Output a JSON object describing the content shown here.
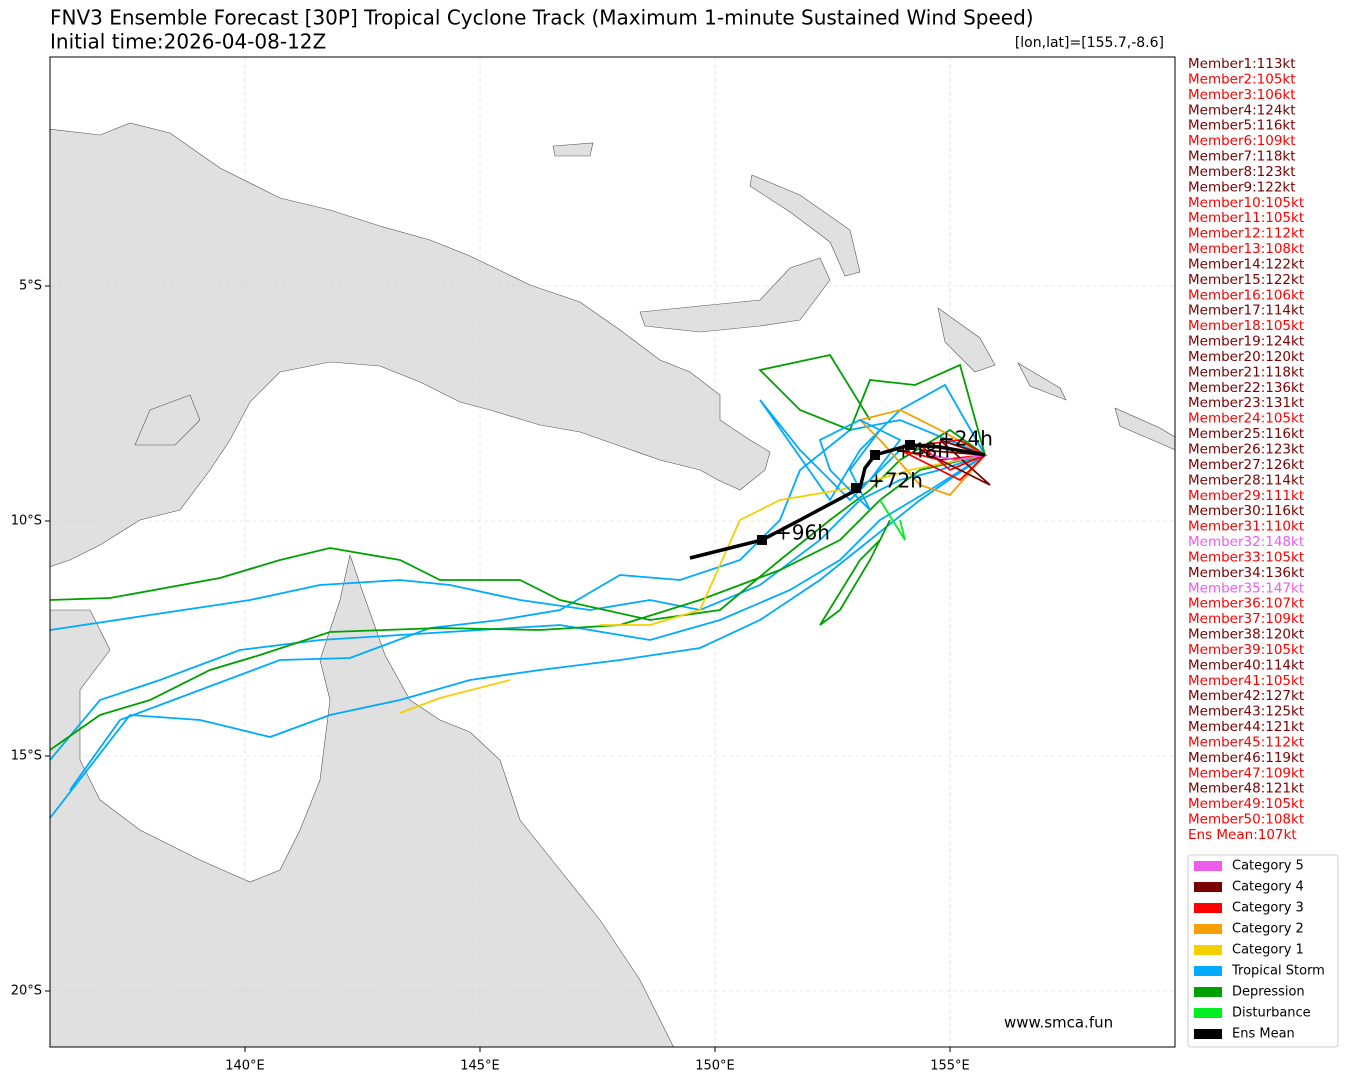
{
  "header": {
    "title": "FNV3 Ensemble Forecast [30P] Tropical Cyclone Track (Maximum 1-minute Sustained Wind Speed)",
    "subtitle": "Initial time:2026-04-08-12Z",
    "position": "[lon,lat]=[155.7,-8.6]"
  },
  "axes": {
    "x_labels": [
      "140°E",
      "145°E",
      "150°E",
      "155°E"
    ],
    "y_labels": [
      "5°S",
      "10°S",
      "15°S",
      "20°S"
    ]
  },
  "members": [
    {
      "label": "Member1:113kt",
      "color": "#7b0000"
    },
    {
      "label": "Member2:105kt",
      "color": "#ff0000"
    },
    {
      "label": "Member3:106kt",
      "color": "#ff0000"
    },
    {
      "label": "Member4:124kt",
      "color": "#7b0000"
    },
    {
      "label": "Member5:116kt",
      "color": "#7b0000"
    },
    {
      "label": "Member6:109kt",
      "color": "#ff0000"
    },
    {
      "label": "Member7:118kt",
      "color": "#7b0000"
    },
    {
      "label": "Member8:123kt",
      "color": "#7b0000"
    },
    {
      "label": "Member9:122kt",
      "color": "#7b0000"
    },
    {
      "label": "Member10:105kt",
      "color": "#ff0000"
    },
    {
      "label": "Member11:105kt",
      "color": "#ff0000"
    },
    {
      "label": "Member12:112kt",
      "color": "#ff0000"
    },
    {
      "label": "Member13:108kt",
      "color": "#ff0000"
    },
    {
      "label": "Member14:122kt",
      "color": "#7b0000"
    },
    {
      "label": "Member15:122kt",
      "color": "#7b0000"
    },
    {
      "label": "Member16:106kt",
      "color": "#ff0000"
    },
    {
      "label": "Member17:114kt",
      "color": "#7b0000"
    },
    {
      "label": "Member18:105kt",
      "color": "#ff0000"
    },
    {
      "label": "Member19:124kt",
      "color": "#7b0000"
    },
    {
      "label": "Member20:120kt",
      "color": "#7b0000"
    },
    {
      "label": "Member21:118kt",
      "color": "#7b0000"
    },
    {
      "label": "Member22:136kt",
      "color": "#7b0000"
    },
    {
      "label": "Member23:131kt",
      "color": "#7b0000"
    },
    {
      "label": "Member24:105kt",
      "color": "#ff0000"
    },
    {
      "label": "Member25:116kt",
      "color": "#7b0000"
    },
    {
      "label": "Member26:123kt",
      "color": "#7b0000"
    },
    {
      "label": "Member27:126kt",
      "color": "#7b0000"
    },
    {
      "label": "Member28:114kt",
      "color": "#7b0000"
    },
    {
      "label": "Member29:111kt",
      "color": "#ff0000"
    },
    {
      "label": "Member30:116kt",
      "color": "#7b0000"
    },
    {
      "label": "Member31:110kt",
      "color": "#ff0000"
    },
    {
      "label": "Member32:148kt",
      "color": "#ee5cee"
    },
    {
      "label": "Member33:105kt",
      "color": "#ff0000"
    },
    {
      "label": "Member34:136kt",
      "color": "#7b0000"
    },
    {
      "label": "Member35:147kt",
      "color": "#ee5cee"
    },
    {
      "label": "Member36:107kt",
      "color": "#ff0000"
    },
    {
      "label": "Member37:109kt",
      "color": "#ff0000"
    },
    {
      "label": "Member38:120kt",
      "color": "#7b0000"
    },
    {
      "label": "Member39:105kt",
      "color": "#ff0000"
    },
    {
      "label": "Member40:114kt",
      "color": "#7b0000"
    },
    {
      "label": "Member41:105kt",
      "color": "#ff0000"
    },
    {
      "label": "Member42:127kt",
      "color": "#7b0000"
    },
    {
      "label": "Member43:125kt",
      "color": "#7b0000"
    },
    {
      "label": "Member44:121kt",
      "color": "#7b0000"
    },
    {
      "label": "Member45:112kt",
      "color": "#ff0000"
    },
    {
      "label": "Member46:119kt",
      "color": "#7b0000"
    },
    {
      "label": "Member47:109kt",
      "color": "#ff0000"
    },
    {
      "label": "Member48:121kt",
      "color": "#7b0000"
    },
    {
      "label": "Member49:105kt",
      "color": "#ff0000"
    },
    {
      "label": "Member50:108kt",
      "color": "#ff0000"
    },
    {
      "label": "Ens Mean:107kt",
      "color": "#ff0000"
    }
  ],
  "legend": [
    {
      "label": "Category 5",
      "color": "#ee5cee"
    },
    {
      "label": "Category 4",
      "color": "#7b0000"
    },
    {
      "label": "Category 3",
      "color": "#ff0000"
    },
    {
      "label": "Category 2",
      "color": "#f5a000"
    },
    {
      "label": "Category 1",
      "color": "#f5d000"
    },
    {
      "label": "Tropical Storm",
      "color": "#00aaff"
    },
    {
      "label": "Depression",
      "color": "#00a000"
    },
    {
      "label": "Disturbance",
      "color": "#00ee22"
    },
    {
      "label": "Ens Mean",
      "color": "#000000"
    }
  ],
  "track_labels": [
    "+24h",
    "+48h",
    "+72h",
    "+96h"
  ],
  "watermark": "www.smca.fun"
}
